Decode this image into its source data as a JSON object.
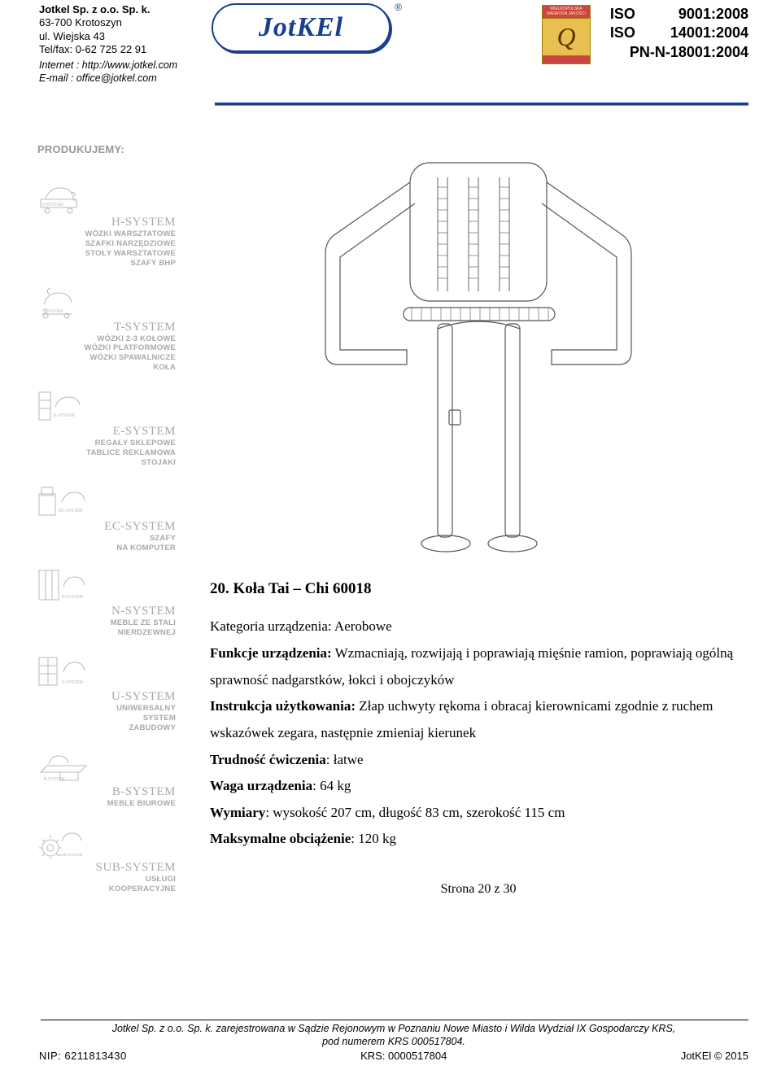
{
  "header": {
    "company_lines": [
      "Jotkel Sp. z o.o. Sp. k.",
      "63-700 Krotoszyn",
      "ul. Wiejska 43",
      "Tel/fax: 0-62 725 22 91"
    ],
    "internet_label": "Internet : http://www.jotkel.com",
    "email_label": "E-mail : office@jotkel.com",
    "logo_text": "JotKEl",
    "qbadge_top": "WIELKOPOLSKA NAGRODA JAKOŚCI",
    "iso": [
      {
        "l": "ISO",
        "r": "9001:2008"
      },
      {
        "l": "ISO",
        "r": "14001:2004"
      },
      {
        "l": "",
        "r": "PN-N-18001:2004"
      }
    ]
  },
  "sidebar": {
    "heading": "PRODUKUJEMY:",
    "systems": [
      {
        "title": "H-SYSTEM",
        "lines": [
          "WÓZKI WARSZTATOWE",
          "SZAFKI  NARZĘDZIOWE",
          "STOŁY WARSZTATOWE",
          "SZAFY  BHP"
        ]
      },
      {
        "title": "T-SYSTEM",
        "lines": [
          "WÓZKI  2-3 KOŁOWE",
          "WÓZKI PLATFORMOWE",
          "WÓZKI SPAWALNICZE",
          "KOŁA"
        ]
      },
      {
        "title": "E-SYSTEM",
        "lines": [
          "REGAŁY SKLEPOWE",
          "TABLICE REKLAMOWA",
          "STOJAKI"
        ]
      },
      {
        "title": "EC-SYSTEM",
        "lines": [
          "SZAFY",
          "NA KOMPUTER"
        ]
      },
      {
        "title": "N-SYSTEM",
        "lines": [
          "MEBLE ZE STALI",
          "NIERDZEWNEJ"
        ]
      },
      {
        "title": "U-SYSTEM",
        "lines": [
          "UNIWERSALNY",
          "SYSTEM",
          "ZABUDOWY"
        ]
      },
      {
        "title": "B-SYSTEM",
        "lines": [
          "MEBLE BIUROWE"
        ]
      },
      {
        "title": "SUB-SYSTEM",
        "lines": [
          "USŁUGI",
          "KOOPERACYJNE"
        ]
      }
    ]
  },
  "main": {
    "title": "20. Koła Tai – Chi 60018",
    "category_label": "Kategoria urządzenia: ",
    "category_value": "Aerobowe",
    "func_label": "Funkcje urządzenia:",
    "func_text": " Wzmacniają, rozwijają i poprawiają mięśnie ramion, poprawiają ogólną sprawność nadgarstków, łokci i obojczyków",
    "instr_label": "Instrukcja użytkowania:",
    "instr_text": " Złap uchwyty rękoma i obracaj kierownicami zgodnie z ruchem wskazówek zegara, następnie zmieniaj kierunek",
    "diff_label": "Trudność ćwiczenia",
    "diff_text": ": łatwe",
    "weight_label": "Waga urządzenia",
    "weight_text": ": 64 kg",
    "dim_label": "Wymiary",
    "dim_text": ": wysokość 207 cm, długość 83 cm, szerokość 115 cm",
    "max_label": "Maksymalne obciążenie",
    "max_text": ": 120 kg",
    "page": "Strona 20 z 30"
  },
  "footer": {
    "reg1": "Jotkel Sp. z o.o. Sp. k. zarejestrowana w Sądzie Rejonowym w Poznaniu Nowe Miasto i Wilda Wydział IX Gospodarczy KRS,",
    "reg2": "pod numerem KRS 000517804.",
    "nip": "NIP:  6211813430",
    "krs": "KRS: 0000517804",
    "copy": "JotKEl © 2015"
  },
  "colors": {
    "brand_blue": "#1a3f8f",
    "sidebar_grey": "#979797",
    "icon_stroke": "#b8b8b8"
  }
}
